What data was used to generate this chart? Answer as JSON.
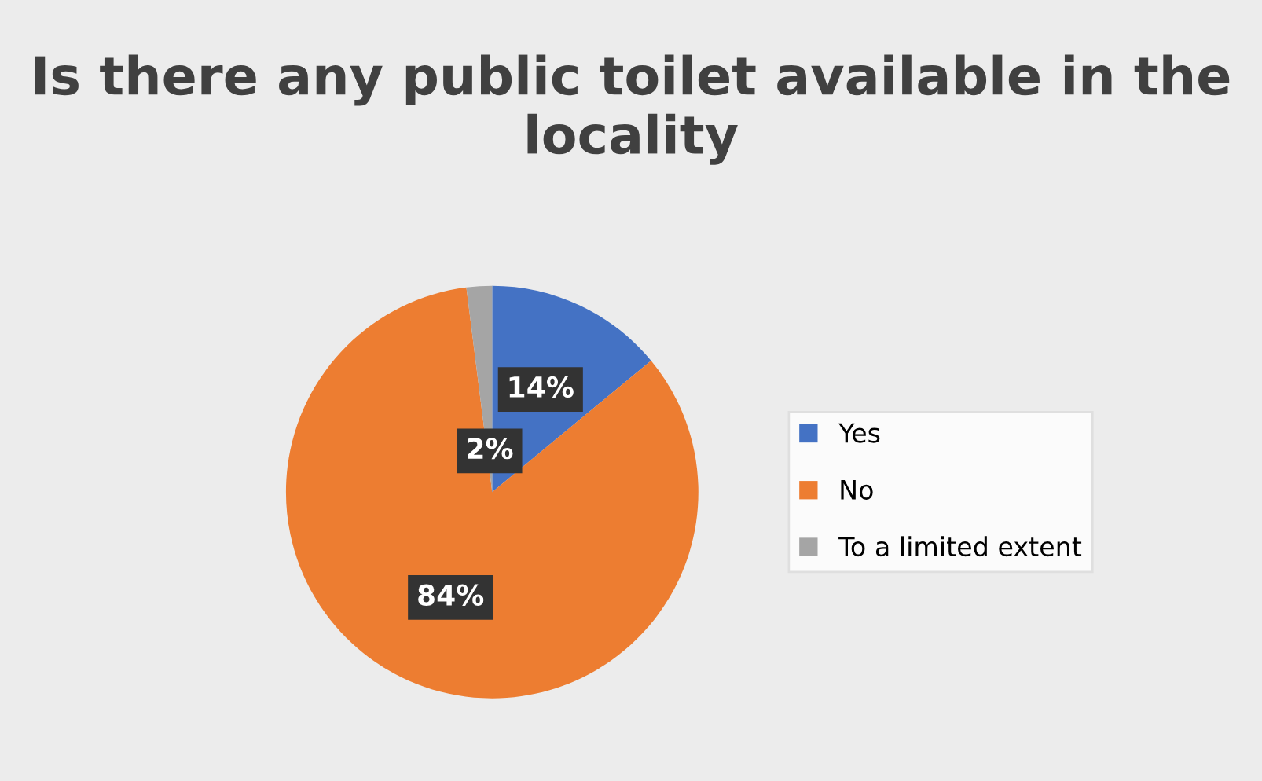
{
  "chart_data": {
    "type": "pie",
    "title": "Is there any public toilet available in the locality",
    "categories": [
      "Yes",
      "No",
      "To a limited extent"
    ],
    "values": [
      14,
      84,
      2
    ],
    "value_labels": [
      "14%",
      "84%",
      "2%"
    ],
    "colors": [
      "#4472c4",
      "#ed7d31",
      "#a5a5a5"
    ],
    "legend": "right"
  }
}
